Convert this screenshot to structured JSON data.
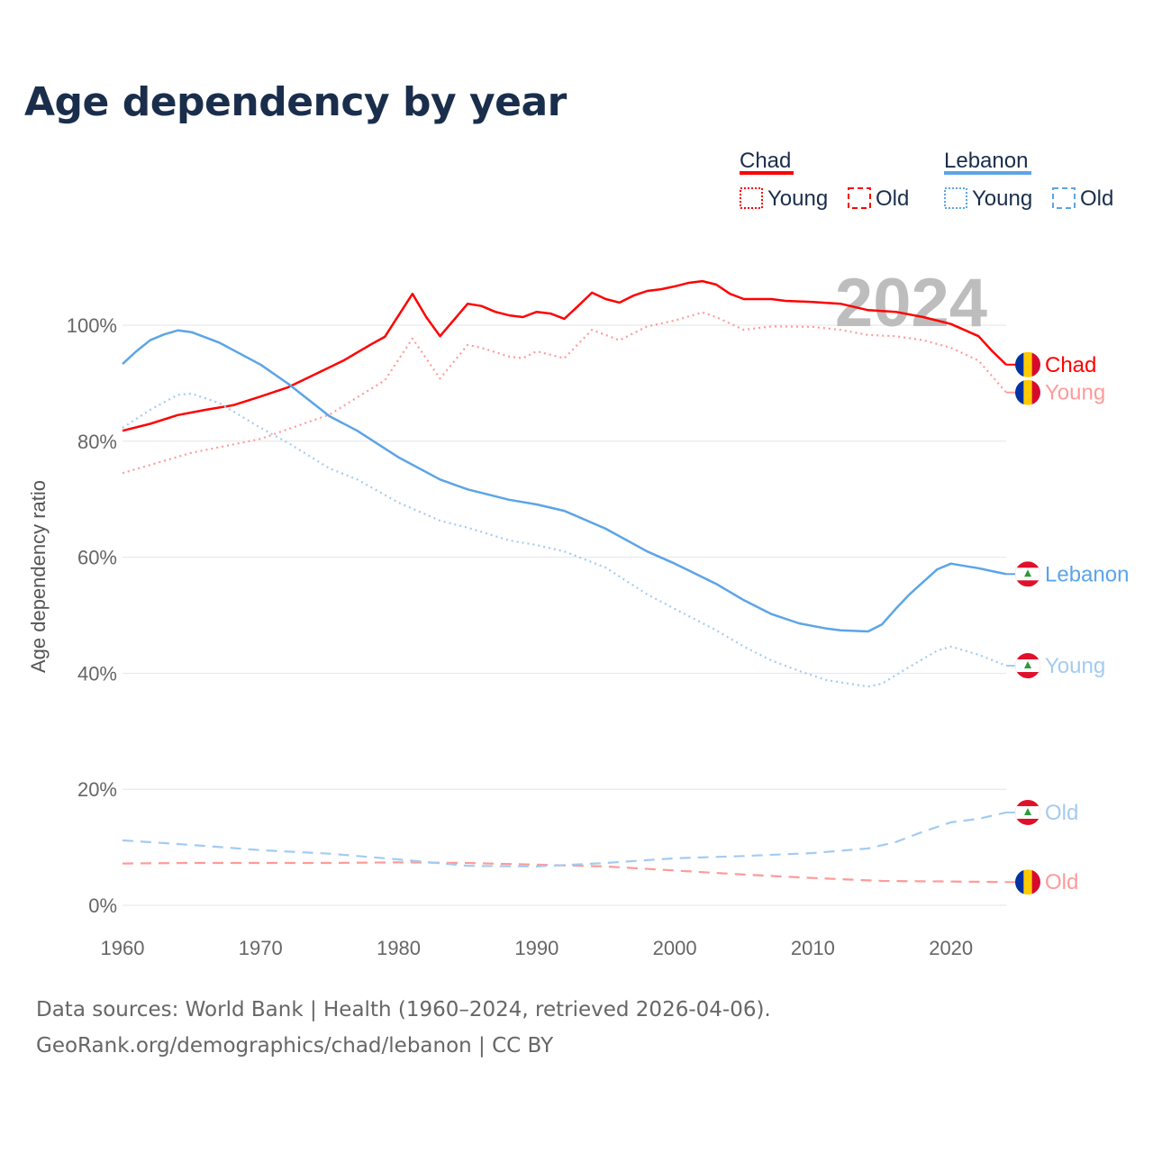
{
  "chart_data": {
    "type": "line",
    "title": "Age dependency by year",
    "ylabel": "Age dependency ratio",
    "xlabel": "",
    "xlim": [
      1960,
      2024
    ],
    "ylim": [
      0,
      110
    ],
    "yticks": [
      0,
      20,
      40,
      60,
      80,
      100
    ],
    "ytick_labels": [
      "0%",
      "20%",
      "40%",
      "60%",
      "80%",
      "100%"
    ],
    "xticks": [
      1960,
      1970,
      1980,
      1990,
      2000,
      2010,
      2020
    ],
    "xtick_labels": [
      "1960",
      "1970",
      "1980",
      "1990",
      "2000",
      "2010",
      "2020"
    ],
    "grid": true,
    "year_watermark": "2024",
    "legend": {
      "placement": "top-right",
      "groups": [
        {
          "country": "Chad",
          "color": "#ff0000",
          "items": [
            "Young",
            "Old"
          ]
        },
        {
          "country": "Lebanon",
          "color": "#5ba4e8",
          "items": [
            "Young",
            "Old"
          ]
        }
      ]
    },
    "series": [
      {
        "name": "Chad",
        "label": "Chad",
        "country": "chad",
        "style": "solid",
        "color": "#ff0000",
        "points": [
          [
            1960,
            81.8
          ],
          [
            1962,
            83
          ],
          [
            1964,
            84.5
          ],
          [
            1966,
            85.4
          ],
          [
            1968,
            86.2
          ],
          [
            1970,
            87.7
          ],
          [
            1972,
            89.3
          ],
          [
            1974,
            91.6
          ],
          [
            1976,
            93.9
          ],
          [
            1978,
            96.7
          ],
          [
            1979,
            98
          ],
          [
            1981,
            105.4
          ],
          [
            1982,
            101.4
          ],
          [
            1983,
            98.1
          ],
          [
            1985,
            103.7
          ],
          [
            1986,
            103.3
          ],
          [
            1987,
            102.3
          ],
          [
            1988,
            101.7
          ],
          [
            1989,
            101.4
          ],
          [
            1990,
            102.3
          ],
          [
            1991,
            102
          ],
          [
            1992,
            101.1
          ],
          [
            1993,
            103.3
          ],
          [
            1994,
            105.6
          ],
          [
            1995,
            104.5
          ],
          [
            1996,
            103.9
          ],
          [
            1997,
            105.1
          ],
          [
            1998,
            105.9
          ],
          [
            1999,
            106.2
          ],
          [
            2000,
            106.7
          ],
          [
            2001,
            107.3
          ],
          [
            2002,
            107.6
          ],
          [
            2003,
            107
          ],
          [
            2004,
            105.4
          ],
          [
            2005,
            104.5
          ],
          [
            2007,
            104.5
          ],
          [
            2008,
            104.2
          ],
          [
            2010,
            104
          ],
          [
            2012,
            103.7
          ],
          [
            2014,
            102.6
          ],
          [
            2016,
            102.3
          ],
          [
            2018,
            101.4
          ],
          [
            2020,
            100.2
          ],
          [
            2022,
            98.1
          ],
          [
            2023,
            95.5
          ],
          [
            2024,
            93.2
          ]
        ]
      },
      {
        "name": "Chad Young",
        "label": "Young",
        "country": "chad",
        "style": "dotted",
        "color": "#ff9a9a",
        "points": [
          [
            1960,
            74.5
          ],
          [
            1965,
            78
          ],
          [
            1970,
            80.4
          ],
          [
            1975,
            84.6
          ],
          [
            1979,
            90.5
          ],
          [
            1981,
            97.7
          ],
          [
            1983,
            90.8
          ],
          [
            1985,
            96.6
          ],
          [
            1986,
            96.1
          ],
          [
            1988,
            94.6
          ],
          [
            1989,
            94.3
          ],
          [
            1990,
            95.5
          ],
          [
            1992,
            94.3
          ],
          [
            1994,
            99.2
          ],
          [
            1996,
            97.4
          ],
          [
            1998,
            99.8
          ],
          [
            2000,
            100.8
          ],
          [
            2002,
            102.2
          ],
          [
            2003,
            101.4
          ],
          [
            2005,
            99.2
          ],
          [
            2007,
            99.8
          ],
          [
            2010,
            99.7
          ],
          [
            2012,
            99.2
          ],
          [
            2014,
            98.3
          ],
          [
            2016,
            98.1
          ],
          [
            2018,
            97.4
          ],
          [
            2020,
            96.1
          ],
          [
            2022,
            93.9
          ],
          [
            2024,
            88.4
          ]
        ]
      },
      {
        "name": "Chad Old",
        "label": "Old",
        "country": "chad",
        "style": "dashed",
        "color": "#ff9a9a",
        "points": [
          [
            1960,
            7.2
          ],
          [
            1965,
            7.3
          ],
          [
            1970,
            7.3
          ],
          [
            1975,
            7.3
          ],
          [
            1980,
            7.4
          ],
          [
            1985,
            7.3
          ],
          [
            1990,
            7.0
          ],
          [
            1995,
            6.7
          ],
          [
            2000,
            6.0
          ],
          [
            2005,
            5.3
          ],
          [
            2010,
            4.7
          ],
          [
            2015,
            4.2
          ],
          [
            2020,
            4.1
          ],
          [
            2024,
            4.0
          ]
        ]
      },
      {
        "name": "Lebanon",
        "label": "Lebanon",
        "country": "lebanon",
        "style": "solid",
        "color": "#5ba4e8",
        "points": [
          [
            1960,
            93.3
          ],
          [
            1961,
            95.5
          ],
          [
            1962,
            97.4
          ],
          [
            1963,
            98.4
          ],
          [
            1964,
            99.1
          ],
          [
            1965,
            98.8
          ],
          [
            1967,
            97
          ],
          [
            1970,
            93.2
          ],
          [
            1972,
            89.9
          ],
          [
            1975,
            84.3
          ],
          [
            1977,
            81.8
          ],
          [
            1980,
            77.2
          ],
          [
            1983,
            73.4
          ],
          [
            1985,
            71.7
          ],
          [
            1988,
            69.9
          ],
          [
            1990,
            69.1
          ],
          [
            1992,
            68
          ],
          [
            1995,
            64.9
          ],
          [
            1998,
            61
          ],
          [
            2000,
            58.9
          ],
          [
            2003,
            55.4
          ],
          [
            2005,
            52.6
          ],
          [
            2007,
            50.2
          ],
          [
            2009,
            48.6
          ],
          [
            2011,
            47.7
          ],
          [
            2012,
            47.4
          ],
          [
            2014,
            47.2
          ],
          [
            2015,
            48.4
          ],
          [
            2016,
            51.1
          ],
          [
            2017,
            53.6
          ],
          [
            2019,
            57.9
          ],
          [
            2020,
            58.9
          ],
          [
            2021,
            58.5
          ],
          [
            2022,
            58.1
          ],
          [
            2023,
            57.6
          ],
          [
            2024,
            57.1
          ]
        ]
      },
      {
        "name": "Lebanon Young",
        "label": "Young",
        "country": "lebanon",
        "style": "dotted",
        "color": "#a3cbf2",
        "points": [
          [
            1960,
            82.3
          ],
          [
            1962,
            85.4
          ],
          [
            1964,
            88
          ],
          [
            1965,
            88.2
          ],
          [
            1967,
            86.6
          ],
          [
            1970,
            82.3
          ],
          [
            1972,
            79.7
          ],
          [
            1975,
            75.3
          ],
          [
            1977,
            73.4
          ],
          [
            1980,
            69.4
          ],
          [
            1983,
            66.3
          ],
          [
            1985,
            65.1
          ],
          [
            1988,
            62.9
          ],
          [
            1990,
            62.1
          ],
          [
            1992,
            61
          ],
          [
            1995,
            58.2
          ],
          [
            1998,
            53.6
          ],
          [
            2000,
            51.1
          ],
          [
            2003,
            47.4
          ],
          [
            2005,
            44.6
          ],
          [
            2007,
            42.2
          ],
          [
            2009,
            40.4
          ],
          [
            2011,
            38.8
          ],
          [
            2014,
            37.7
          ],
          [
            2015,
            38.2
          ],
          [
            2017,
            41.1
          ],
          [
            2019,
            43.9
          ],
          [
            2020,
            44.6
          ],
          [
            2022,
            43.2
          ],
          [
            2024,
            41.3
          ]
        ]
      },
      {
        "name": "Lebanon Old",
        "label": "Old",
        "country": "lebanon",
        "style": "dashed",
        "color": "#a3cbf2",
        "points": [
          [
            1960,
            11.2
          ],
          [
            1965,
            10.4
          ],
          [
            1970,
            9.5
          ],
          [
            1975,
            8.9
          ],
          [
            1980,
            7.9
          ],
          [
            1985,
            6.8
          ],
          [
            1990,
            6.7
          ],
          [
            1995,
            7.3
          ],
          [
            2000,
            8.1
          ],
          [
            2005,
            8.5
          ],
          [
            2010,
            9.0
          ],
          [
            2014,
            9.8
          ],
          [
            2016,
            10.9
          ],
          [
            2018,
            12.7
          ],
          [
            2020,
            14.3
          ],
          [
            2022,
            14.9
          ],
          [
            2024,
            16.0
          ]
        ]
      }
    ]
  },
  "footer": {
    "line1": "Data sources: World Bank | Health (1960–2024, retrieved 2026-04-06).",
    "line2": "GeoRank.org/demographics/chad/lebanon | CC BY"
  }
}
